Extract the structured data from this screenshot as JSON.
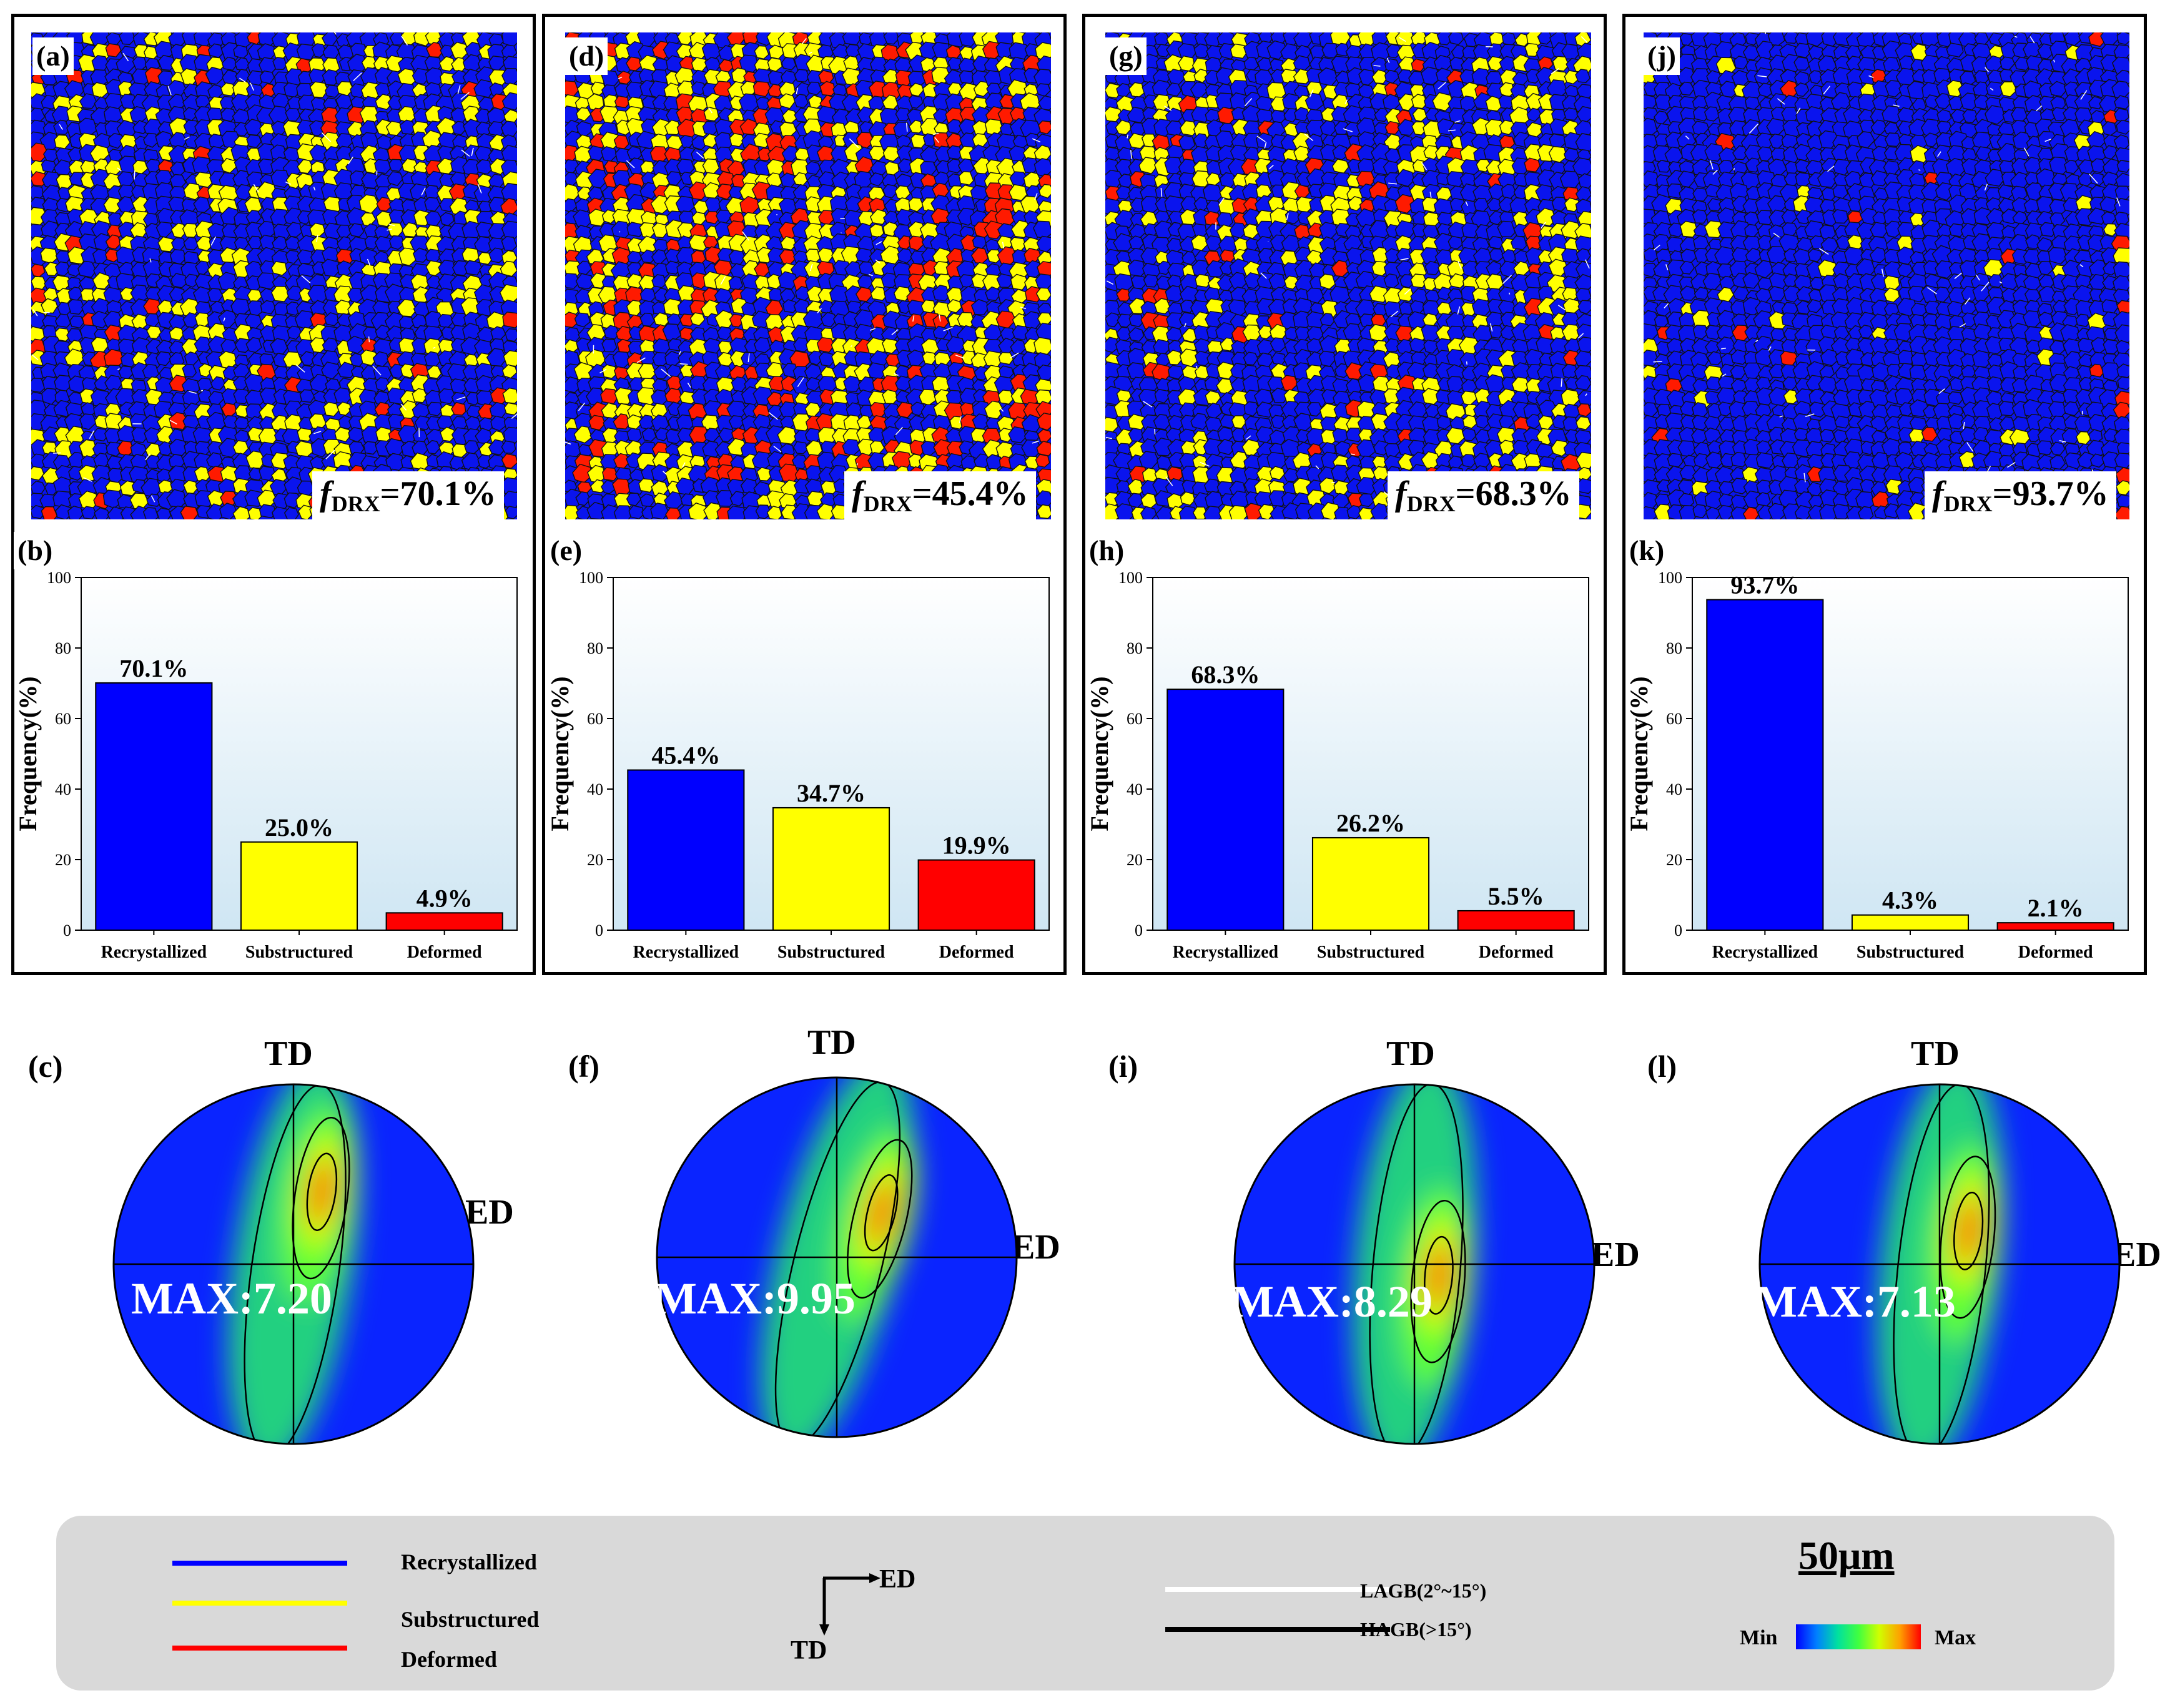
{
  "panels": [
    {
      "map_label": "(a)",
      "fdrx_prefix": "f",
      "fdrx_sub": "DRX",
      "fdrx_value": "=70.1%",
      "chart_label": "(b)",
      "pf_label": "(c)",
      "max_text": "MAX:7.20",
      "max_value": 7.2,
      "pf_peak": [
        0.1,
        -0.42
      ],
      "pf_tilt": 8
    },
    {
      "map_label": "(d)",
      "fdrx_prefix": "f",
      "fdrx_sub": "DRX",
      "fdrx_value": "=45.4%",
      "chart_label": "(e)",
      "pf_label": "(f)",
      "max_text": "MAX:9.95",
      "max_value": 9.95,
      "pf_peak": [
        0.18,
        -0.3
      ],
      "pf_tilt": 14
    },
    {
      "map_label": "(g)",
      "fdrx_prefix": "f",
      "fdrx_sub": "DRX",
      "fdrx_value": "=68.3%",
      "chart_label": "(h)",
      "pf_label": "(i)",
      "max_text": "MAX:8.29",
      "max_value": 8.29,
      "pf_peak": [
        0.14,
        0.05
      ],
      "pf_tilt": 5
    },
    {
      "map_label": "(j)",
      "fdrx_prefix": "f",
      "fdrx_sub": "DRX",
      "fdrx_value": "=93.7%",
      "chart_label": "(k)",
      "pf_label": "(l)",
      "max_text": "MAX:7.13",
      "max_value": 7.13,
      "pf_peak": [
        0.14,
        -0.2
      ],
      "pf_tilt": 6
    }
  ],
  "chart_data": [
    {
      "type": "bar",
      "title": "",
      "xlabel": "",
      "ylabel": "Frequency(%)",
      "ylim": [
        0,
        100
      ],
      "yticks": [
        0,
        20,
        40,
        60,
        80,
        100
      ],
      "categories": [
        "Recrystallized",
        "Substructured",
        "Deformed"
      ],
      "values": [
        70.1,
        25.0,
        4.9
      ],
      "labels": [
        "70.1%",
        "25.0%",
        "4.9%"
      ],
      "colors": [
        "#0000ff",
        "#ffff00",
        "#ff0000"
      ]
    },
    {
      "type": "bar",
      "title": "",
      "xlabel": "",
      "ylabel": "Frequency(%)",
      "ylim": [
        0,
        100
      ],
      "yticks": [
        0,
        20,
        40,
        60,
        80,
        100
      ],
      "categories": [
        "Recrystallized",
        "Substructured",
        "Deformed"
      ],
      "values": [
        45.4,
        34.7,
        19.9
      ],
      "labels": [
        "45.4%",
        "34.7%",
        "19.9%"
      ],
      "colors": [
        "#0000ff",
        "#ffff00",
        "#ff0000"
      ]
    },
    {
      "type": "bar",
      "title": "",
      "xlabel": "",
      "ylabel": "Frequency(%)",
      "ylim": [
        0,
        100
      ],
      "yticks": [
        0,
        20,
        40,
        60,
        80,
        100
      ],
      "categories": [
        "Recrystallized",
        "Substructured",
        "Deformed"
      ],
      "values": [
        68.3,
        26.2,
        5.5
      ],
      "labels": [
        "68.3%",
        "26.2%",
        "5.5%"
      ],
      "colors": [
        "#0000ff",
        "#ffff00",
        "#ff0000"
      ]
    },
    {
      "type": "bar",
      "title": "",
      "xlabel": "",
      "ylabel": "Frequency(%)",
      "ylim": [
        0,
        100
      ],
      "yticks": [
        0,
        20,
        40,
        60,
        80,
        100
      ],
      "categories": [
        "Recrystallized",
        "Substructured",
        "Deformed"
      ],
      "values": [
        93.7,
        4.3,
        2.1
      ],
      "labels": [
        "93.7%",
        "4.3%",
        "2.1%"
      ],
      "colors": [
        "#0000ff",
        "#ffff00",
        "#ff0000"
      ]
    }
  ],
  "pole_figure": {
    "td": "TD",
    "ed": "ED"
  },
  "legend": {
    "recrystallized": "Recrystallized",
    "substructured": "Substructured",
    "deformed": "Deformed",
    "recrystallized_color": "#0000ff",
    "substructured_color": "#ffff00",
    "deformed_color": "#ff0000",
    "axis_ed": "ED",
    "axis_td": "TD",
    "lagb": "LAGB(2°~15°)",
    "hagb": "HAGB(>15°)",
    "scale_bar": "50μm",
    "min": "Min",
    "max": "Max"
  }
}
